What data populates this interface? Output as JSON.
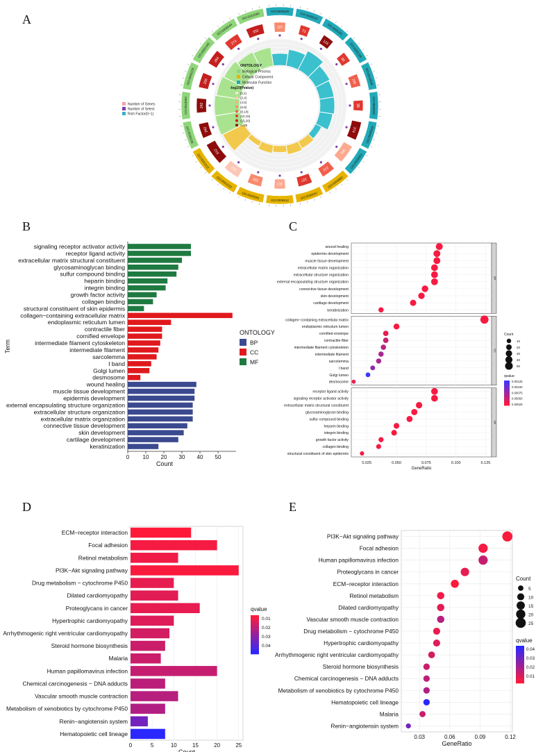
{
  "panel_labels": {
    "a": "A",
    "b": "B",
    "c": "C",
    "d": "D",
    "e": "E"
  },
  "chart_data": [
    {
      "panel": "A",
      "type": "circos",
      "legend_title": "ONTOLOGY",
      "legend_items": [
        {
          "label": "Biological Process",
          "color": "#8fd67a"
        },
        {
          "label": "Cellular Component",
          "color": "#e6b400"
        },
        {
          "label": "Molecular Function",
          "color": "#22a9b8"
        }
      ],
      "pvalue_title": "-log10(Pvalue)",
      "pvalue_bins": [
        "[0,2]",
        "(2,4]",
        "(4,6]",
        "(6,8]",
        "(8,10]",
        "(10,15]",
        "(15,20]",
        ">=20"
      ],
      "pvalue_colors": [
        "#ffe6e0",
        "#fdc7b7",
        "#fca98f",
        "#f88b6d",
        "#f0604d",
        "#e0382f",
        "#c41f1f",
        "#8e0c0c"
      ],
      "side_legend": [
        "Number of Genes",
        "Number of Select",
        "Rich Factor(0~1)"
      ],
      "term_ids": [
        "GO:0005539",
        "GO:0005518",
        "GO:0005201",
        "GO:0005198",
        "GO:0019838",
        "GO:0050839",
        "GO:0048018",
        "GO:0008083",
        "GO:0005882",
        "GO:0030057",
        "GO:0005912",
        "GO:0045095",
        "GO:0001533",
        "GO:0031012",
        "GO:0030198",
        "GO:0043062",
        "GO:0045229",
        "GO:0061448",
        "GO:0008544",
        "GO:0042060"
      ],
      "term_groups": [
        "MF",
        "MF",
        "MF",
        "MF",
        "MF",
        "MF",
        "MF",
        "MF",
        "CC",
        "CC",
        "CC",
        "CC",
        "CC",
        "CC",
        "BP",
        "BP",
        "BP",
        "BP",
        "BP",
        "BP"
      ],
      "gene_counts": [
        127,
        73,
        123,
        98,
        165,
        98,
        374,
        381,
        215,
        227,
        117,
        225,
        312,
        512,
        242,
        242,
        256,
        264,
        274,
        333
      ],
      "select_counts": [
        10,
        12,
        36,
        17,
        21,
        22,
        35,
        16,
        9,
        18,
        7,
        16,
        8,
        58,
        35,
        35,
        35,
        36,
        34,
        38
      ],
      "neglog_p_bins": [
        3,
        5,
        7,
        5,
        4,
        5,
        7,
        2,
        4,
        5,
        2,
        3,
        1,
        7,
        7,
        7,
        6,
        6,
        5,
        6
      ],
      "rich_factor": [
        0.18,
        0.25,
        0.32,
        0.24,
        0.22,
        0.22,
        0.2,
        0.1,
        0.12,
        0.14,
        0.1,
        0.12,
        0.08,
        0.36,
        0.38,
        0.38,
        0.36,
        0.34,
        0.3,
        0.28
      ]
    },
    {
      "panel": "B",
      "type": "bar",
      "orientation": "horizontal",
      "xlabel": "Count",
      "ylabel": "Term",
      "xticks": [
        0,
        10,
        20,
        30,
        40,
        50
      ],
      "xlim": [
        0,
        60
      ],
      "legend_title": "ONTOLOGY",
      "legend_placement": "right",
      "groups": [
        {
          "name": "BP",
          "color": "#3b4a8f"
        },
        {
          "name": "CC",
          "color": "#e0191d"
        },
        {
          "name": "MF",
          "color": "#1f7a41"
        }
      ],
      "categories": [
        "signaling receptor activator activity",
        "receptor ligand activity",
        "extracellular matrix structural constituent",
        "glycosaminoglycan binding",
        "sulfur compound binding",
        "heparin binding",
        "integrin binding",
        "growth factor activity",
        "collagen binding",
        "structural constituent of skin epidermis",
        "collagen−containing extracellular matrix",
        "endoplasmic reticulum lumen",
        "contractile fiber",
        "cornified envelope",
        "intermediate filament cytoskeleton",
        "intermediate filament",
        "sarcolemma",
        "I band",
        "Golgi lumen",
        "desmosome",
        "wound healing",
        "muscle tissue development",
        "epidermis development",
        "external encapsulating structure organization",
        "extracellular structure organization",
        "extracellular matrix organization",
        "connective tissue development",
        "skin development",
        "cartilage development",
        "keratinization"
      ],
      "group_of": [
        "MF",
        "MF",
        "MF",
        "MF",
        "MF",
        "MF",
        "MF",
        "MF",
        "MF",
        "MF",
        "CC",
        "CC",
        "CC",
        "CC",
        "CC",
        "CC",
        "CC",
        "CC",
        "CC",
        "CC",
        "BP",
        "BP",
        "BP",
        "BP",
        "BP",
        "BP",
        "BP",
        "BP",
        "BP",
        "BP"
      ],
      "values": [
        35,
        35,
        30,
        28,
        27,
        22,
        21,
        16,
        14,
        9,
        58,
        24,
        19,
        19,
        18,
        17,
        16,
        13,
        12,
        7,
        38,
        37,
        37,
        36,
        36,
        36,
        33,
        31,
        28,
        17
      ]
    },
    {
      "panel": "C",
      "type": "scatter",
      "xlabel": "GeneRatio",
      "xticks": [
        0.025,
        0.05,
        0.075,
        0.1,
        0.125
      ],
      "xlim": [
        0.012,
        0.13
      ],
      "facets": [
        "BP",
        "CC",
        "MF"
      ],
      "size_legend_title": "Count",
      "size_legend": [
        10,
        20,
        30,
        40,
        50
      ],
      "color_legend_title": "qvalue",
      "color_legend_ticks": [
        "0.00125",
        "0.00100",
        "0.00075",
        "0.00050",
        "0.00025"
      ],
      "facet_terms": [
        [
          "wound healing",
          "epidermis development",
          "muscle tissue development",
          "extracellular matrix organization",
          "extracellular structure organization",
          "external encapsulating structure organization",
          "connective tissue development",
          "skin development",
          "cartilage development",
          "keratinization"
        ],
        [
          "collagen−containing extracellular matrix",
          "endoplasmic reticulum lumen",
          "cornified envelope",
          "contractile fiber",
          "intermediate filament cytoskeleton",
          "intermediate filament",
          "sarcolemma",
          "I band",
          "Golgi lumen",
          "desmosome"
        ],
        [
          "receptor ligand activity",
          "signaling receptor activator activity",
          "extracellular matrix structural constituent",
          "glycosaminoglycan binding",
          "sulfur compound binding",
          "heparin binding",
          "integrin binding",
          "growth factor activity",
          "collagen binding",
          "structural constituent of skin epidermis"
        ]
      ],
      "facet_x": [
        [
          0.086,
          0.084,
          0.084,
          0.082,
          0.082,
          0.082,
          0.074,
          0.071,
          0.064,
          0.037
        ],
        [
          0.124,
          0.05,
          0.041,
          0.041,
          0.039,
          0.037,
          0.035,
          0.03,
          0.026,
          0.014
        ],
        [
          0.082,
          0.082,
          0.069,
          0.065,
          0.061,
          0.05,
          0.048,
          0.037,
          0.035,
          0.021
        ]
      ],
      "facet_count": [
        [
          38,
          37,
          37,
          36,
          36,
          36,
          33,
          31,
          28,
          17
        ],
        [
          58,
          24,
          19,
          19,
          18,
          17,
          16,
          13,
          12,
          7
        ],
        [
          35,
          35,
          30,
          28,
          27,
          22,
          21,
          16,
          14,
          9
        ]
      ],
      "facet_q": [
        [
          0.0001,
          0.0001,
          0.0001,
          0.0001,
          0.0001,
          0.0001,
          0.0001,
          0.0001,
          0.0001,
          0.0001
        ],
        [
          0.0001,
          0.0001,
          0.0002,
          0.0004,
          0.0005,
          0.0006,
          0.0006,
          0.0008,
          0.0013,
          0.0002
        ],
        [
          0.0001,
          0.0001,
          0.0001,
          0.0001,
          0.0001,
          0.0001,
          0.0001,
          0.0001,
          0.0001,
          0.0001
        ]
      ]
    },
    {
      "panel": "D",
      "type": "bar",
      "orientation": "horizontal",
      "xlabel": "Count",
      "xticks": [
        0,
        5,
        10,
        15,
        20,
        25
      ],
      "xlim": [
        0,
        26
      ],
      "legend_title": "qvalue",
      "legend_ticks": [
        "0.01",
        "0.02",
        "0.03",
        "0.04"
      ],
      "categories": [
        "ECM−receptor interaction",
        "Focal adhesion",
        "Retinol metabolism",
        "PI3K−Akt signaling pathway",
        "Drug metabolism − cytochrome P450",
        "Dilated cardiomyopathy",
        "Proteoglycans in cancer",
        "Hypertrophic cardiomyopathy",
        "Arrhythmogenic right ventricular cardiomyopathy",
        "Steroid hormone biosynthesis",
        "Malaria",
        "Human papillomavirus infection",
        "Chemical carcinogenesis − DNA adducts",
        "Vascular smooth muscle contraction",
        "Metabolism of xenobiotics by cytochrome P450",
        "Renin−angiotensin system",
        "Hematopoietic cell lineage"
      ],
      "values": [
        14,
        20,
        11,
        25,
        10,
        11,
        16,
        10,
        9,
        8,
        7,
        20,
        8,
        11,
        8,
        4,
        8
      ],
      "qvalues": [
        0.001,
        0.003,
        0.004,
        0.002,
        0.006,
        0.007,
        0.006,
        0.008,
        0.01,
        0.012,
        0.012,
        0.013,
        0.015,
        0.016,
        0.017,
        0.03,
        0.045
      ]
    },
    {
      "panel": "E",
      "type": "scatter",
      "xlabel": "GeneRatio",
      "xticks": [
        0.03,
        0.06,
        0.09,
        0.12
      ],
      "xlim": [
        0.012,
        0.122
      ],
      "size_legend_title": "Count",
      "size_legend": [
        5,
        10,
        15,
        20,
        25
      ],
      "color_legend_title": "qvalue",
      "color_legend_ticks": [
        "0.04",
        "0.03",
        "0.02",
        "0.01"
      ],
      "categories": [
        "PI3K−Akt signaling pathway",
        "Focal adhesion",
        "Human papillomavirus infection",
        "Proteoglycans in cancer",
        "ECM−receptor interaction",
        "Retinol metabolism",
        "Dilated cardiomyopathy",
        "Vascular smooth muscle contraction",
        "Drug metabolism − cytochrome P450",
        "Hypertrophic cardiomyopathy",
        "Arrhythmogenic right ventricular cardiomyopathy",
        "Steroid hormone biosynthesis",
        "Chemical carcinogenesis − DNA adducts",
        "Metabolism of xenobiotics by cytochrome P450",
        "Hematopoietic cell lineage",
        "Malaria",
        "Renin−angiotensin system"
      ],
      "x": [
        0.117,
        0.093,
        0.093,
        0.075,
        0.065,
        0.051,
        0.051,
        0.051,
        0.047,
        0.047,
        0.042,
        0.037,
        0.037,
        0.037,
        0.037,
        0.033,
        0.019
      ],
      "count": [
        25,
        20,
        20,
        16,
        14,
        11,
        11,
        11,
        10,
        10,
        9,
        8,
        8,
        8,
        8,
        7,
        4
      ],
      "qvalues": [
        0.002,
        0.003,
        0.013,
        0.006,
        0.001,
        0.004,
        0.007,
        0.016,
        0.006,
        0.008,
        0.01,
        0.012,
        0.015,
        0.017,
        0.045,
        0.012,
        0.03
      ]
    }
  ]
}
